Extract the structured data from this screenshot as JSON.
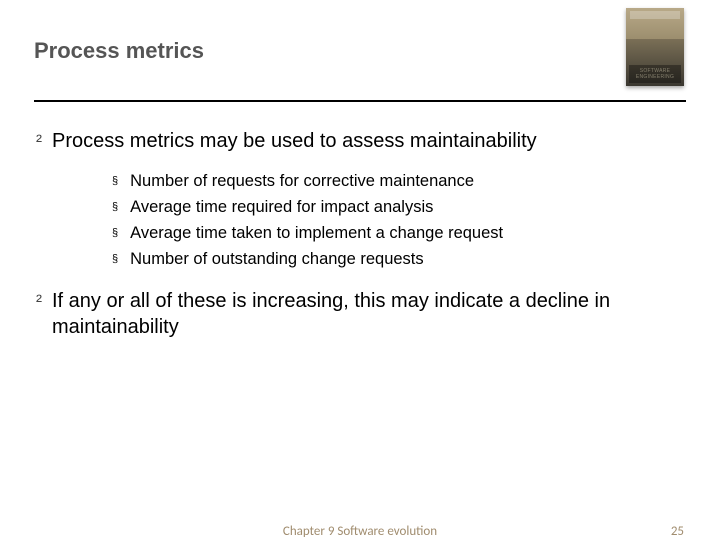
{
  "header": {
    "title": "Process metrics",
    "book_label": "SOFTWARE ENGINEERING"
  },
  "bullets": {
    "level1": [
      {
        "text": "Process metrics may be used to assess maintainability"
      },
      {
        "text": "If any or all of these is increasing, this may indicate a decline in maintainability"
      }
    ],
    "level2": [
      {
        "text": "Number of requests for corrective maintenance"
      },
      {
        "text": "Average time required for impact analysis"
      },
      {
        "text": "Average time taken to implement a change request"
      },
      {
        "text": "Number of outstanding change requests"
      }
    ]
  },
  "footer": {
    "center": "Chapter 9 Software evolution",
    "page": "25"
  },
  "colors": {
    "title_text": "#555555",
    "rule": "#000000",
    "footer_text": "#a08c6e",
    "body_text": "#000000",
    "background": "#ffffff"
  },
  "typography": {
    "title_fontsize": 22,
    "l1_fontsize": 20,
    "l2_fontsize": 16.5,
    "footer_fontsize": 13,
    "font_family": "Arial"
  },
  "glyphs": {
    "l1_bullet": "²",
    "l2_bullet": "§"
  }
}
